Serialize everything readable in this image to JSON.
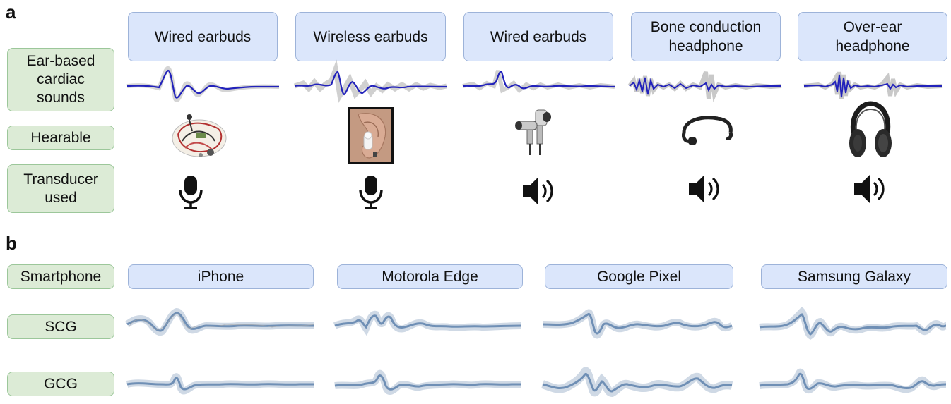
{
  "panel_a": {
    "label": "a",
    "row_labels": [
      "Ear-based cardiac sounds",
      "Hearable",
      "Transducer used"
    ],
    "columns": [
      {
        "title": "Wired earbuds",
        "hearable_icon": "wired-earbuds-diy-icon",
        "transducer_icon": "microphone-icon"
      },
      {
        "title": "Wireless earbuds",
        "hearable_icon": "wireless-earbud-photo-icon",
        "transducer_icon": "microphone-icon"
      },
      {
        "title": "Wired earbuds",
        "hearable_icon": "wired-earbuds-icon",
        "transducer_icon": "speaker-icon"
      },
      {
        "title": "Bone conduction headphone",
        "hearable_icon": "bone-conduction-headphone-icon",
        "transducer_icon": "speaker-icon"
      },
      {
        "title": "Over-ear headphone",
        "hearable_icon": "over-ear-headphone-icon",
        "transducer_icon": "speaker-icon"
      }
    ]
  },
  "panel_b": {
    "label": "b",
    "row_labels": [
      "Smartphone",
      "SCG",
      "GCG"
    ],
    "columns": [
      "iPhone",
      "Motorola Edge",
      "Google Pixel",
      "Samsung Galaxy"
    ]
  },
  "colors": {
    "header_fill": "#dbe6fb",
    "label_fill": "#dcebd6",
    "ear_signal": "#2222bb",
    "phone_signal": "#6f8fb5"
  }
}
